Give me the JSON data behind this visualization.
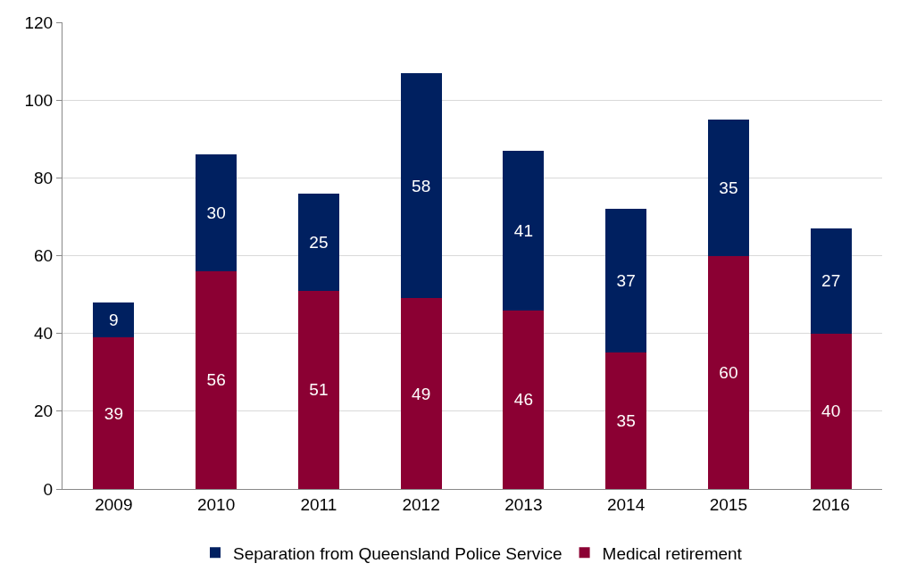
{
  "chart_data": {
    "type": "bar",
    "stacked": true,
    "categories": [
      "2009",
      "2010",
      "2011",
      "2012",
      "2013",
      "2014",
      "2015",
      "2016"
    ],
    "series": [
      {
        "name": "Medical retirement",
        "color": "#8b0033",
        "values": [
          39,
          56,
          51,
          49,
          46,
          35,
          60,
          40
        ]
      },
      {
        "name": "Separation from Queensland Police Service",
        "color": "#002060",
        "values": [
          9,
          30,
          25,
          58,
          41,
          37,
          35,
          27
        ]
      }
    ],
    "ylim": [
      0,
      120
    ],
    "yticks": [
      0,
      20,
      40,
      60,
      80,
      100,
      120
    ],
    "grid": "y",
    "legend": "bottom",
    "data_labels": true
  }
}
